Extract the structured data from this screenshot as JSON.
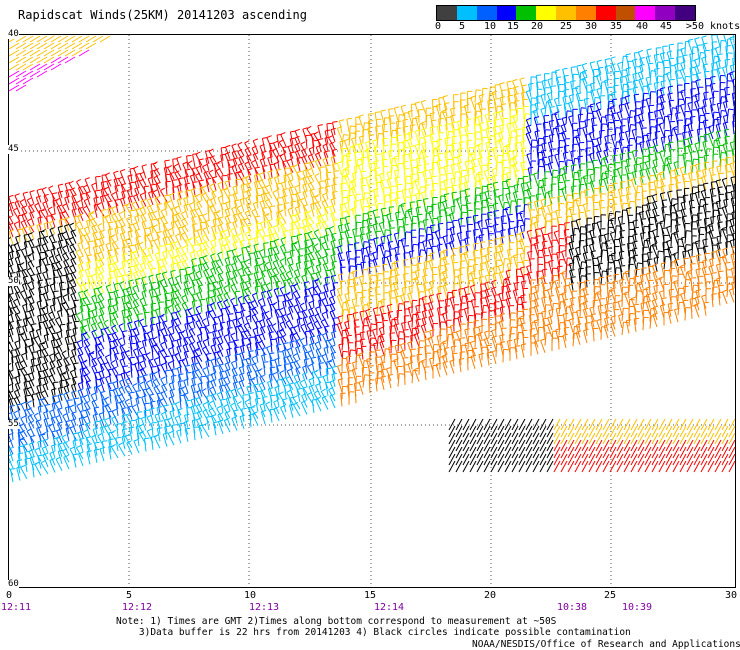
{
  "title": "Rapidscat Winds(25KM) 20141203 ascending",
  "legend": {
    "colors": [
      "#404040",
      "#00bfff",
      "#0060ff",
      "#0000ff",
      "#00c000",
      "#ffff00",
      "#ffc000",
      "#ff8000",
      "#ff0000",
      "#c05000",
      "#ff00ff",
      "#9000c0",
      "#400080"
    ],
    "labels": [
      "0",
      "5",
      "10",
      "15",
      "20",
      "25",
      "30",
      "35",
      "40",
      "45",
      ">50 knots"
    ]
  },
  "y_axis": {
    "labels": [
      "40",
      "45",
      "50",
      "55",
      "60"
    ]
  },
  "x_axis": {
    "labels": [
      "0",
      "5",
      "10",
      "15",
      "20",
      "25",
      "30"
    ]
  },
  "times": {
    "labels": [
      "12:11",
      "12:12",
      "12:13",
      "12:14",
      "10:38",
      "10:39"
    ],
    "color": "#8000a0"
  },
  "notes": {
    "line1": "Note: 1) Times are GMT 2)Times along bottom correspond to measurement at ~50S",
    "line2": "3)Data buffer is 22 hrs from 20141203 4) Black circles indicate possible contamination"
  },
  "credit": "NOAA/NESDIS/Office of Research and Applications"
}
